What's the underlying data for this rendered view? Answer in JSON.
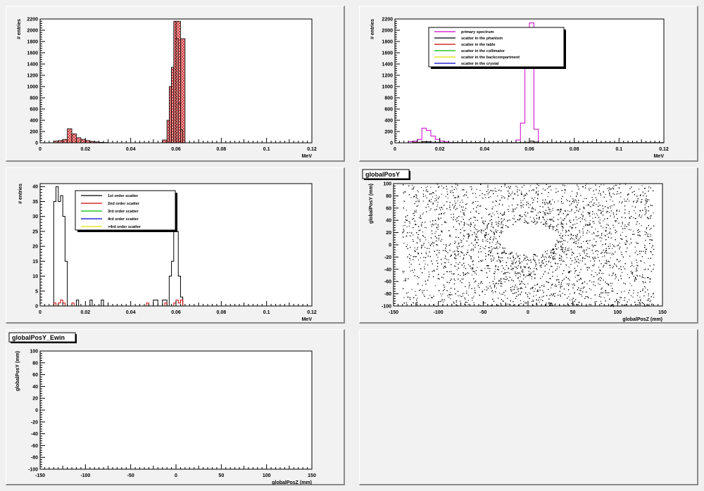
{
  "chart_data": [
    {
      "id": "energy_spectrum_filled",
      "type": "bar",
      "xlabel": "MeV",
      "ylabel": "# entries",
      "xlim": [
        0,
        0.12
      ],
      "ylim": [
        0,
        2200
      ],
      "x_ticks": [
        0,
        0.02,
        0.04,
        0.06,
        0.08,
        0.1,
        0.12
      ],
      "x_tick_labels": [
        "0",
        "0.02",
        "0.04",
        "0.06",
        "0.08",
        "0.1",
        "0.12"
      ],
      "y_ticks": [
        0,
        200,
        400,
        600,
        800,
        1000,
        1200,
        1400,
        1600,
        1800,
        2000,
        2200
      ],
      "bin_width": 0.002,
      "fill_color": "#cc2222",
      "series": [
        {
          "x": [
            0.006,
            0.008,
            0.01,
            0.012,
            0.014,
            0.016,
            0.018,
            0.02,
            0.022,
            0.024,
            0.026,
            0.028,
            0.054,
            0.056,
            0.058,
            0.06,
            0.062
          ],
          "values": [
            30,
            40,
            60,
            250,
            160,
            90,
            60,
            40,
            25,
            15,
            8,
            5,
            50,
            400,
            1340,
            2160,
            1850
          ]
        },
        {
          "x": [
            0.057,
            0.058,
            0.059,
            0.06,
            0.061,
            0.062
          ],
          "values": [
            1000,
            1340,
            2160,
            1850,
            700,
            230
          ]
        }
      ]
    },
    {
      "id": "energy_spectrum_components",
      "type": "line",
      "xlabel": "MeV",
      "ylabel": "# entries",
      "xlim": [
        0,
        0.12
      ],
      "ylim": [
        0,
        2200
      ],
      "x_ticks": [
        0,
        0.02,
        0.04,
        0.06,
        0.08,
        0.1,
        0.12
      ],
      "x_tick_labels": [
        "0",
        "0.02",
        "0.04",
        "0.06",
        "0.08",
        "0.1",
        "0.12"
      ],
      "y_ticks": [
        0,
        200,
        400,
        600,
        800,
        1000,
        1200,
        1400,
        1600,
        1800,
        2000,
        2200
      ],
      "legend_placement": "top-center",
      "series": [
        {
          "name": "primary spectrum",
          "color": "#cc00cc",
          "x": [
            0.004,
            0.006,
            0.008,
            0.01,
            0.012,
            0.014,
            0.016,
            0.018,
            0.02,
            0.022,
            0.024,
            0.026,
            0.028,
            0.03,
            0.054,
            0.056,
            0.058,
            0.06,
            0.062,
            0.064
          ],
          "values": [
            0,
            20,
            30,
            60,
            260,
            220,
            120,
            60,
            30,
            15,
            8,
            4,
            2,
            0,
            50,
            350,
            1370,
            2130,
            240,
            0
          ]
        },
        {
          "name": "scatter in the phantom",
          "color": "#000000",
          "x": [
            0.004,
            0.008,
            0.012,
            0.016,
            0.02,
            0.04,
            0.056,
            0.058,
            0.06,
            0.062,
            0.064,
            0.12
          ],
          "values": [
            0,
            10,
            20,
            10,
            5,
            2,
            5,
            10,
            30,
            12,
            2,
            0
          ]
        },
        {
          "name": "scatter in the table",
          "color": "#cc0000",
          "x": [
            0.004,
            0.008,
            0.012,
            0.02,
            0.058,
            0.06,
            0.062,
            0.12
          ],
          "values": [
            0,
            3,
            5,
            2,
            2,
            4,
            2,
            0
          ]
        },
        {
          "name": "scatter in the collimator",
          "color": "#00bb00",
          "x": [
            0.004,
            0.01,
            0.014,
            0.02,
            0.06,
            0.12
          ],
          "values": [
            0,
            2,
            3,
            1,
            2,
            0
          ]
        },
        {
          "name": "scatter in the backcompartment",
          "color": "#dddd00",
          "x": [
            0.004,
            0.01,
            0.014,
            0.02,
            0.06,
            0.12
          ],
          "values": [
            0,
            2,
            2,
            1,
            1,
            0
          ]
        },
        {
          "name": "scatter in the crystal",
          "color": "#0000cc",
          "x": [
            0.004,
            0.01,
            0.014,
            0.02,
            0.06,
            0.12
          ],
          "values": [
            0,
            2,
            3,
            1,
            2,
            0
          ]
        }
      ]
    },
    {
      "id": "scatter_order",
      "type": "line",
      "xlabel": "MeV",
      "ylabel": "# entries",
      "xlim": [
        0,
        0.12
      ],
      "ylim": [
        0,
        41
      ],
      "x_ticks": [
        0,
        0.02,
        0.04,
        0.06,
        0.08,
        0.1,
        0.12
      ],
      "x_tick_labels": [
        "0",
        "0.02",
        "0.04",
        "0.06",
        "0.08",
        "0.1",
        "0.12"
      ],
      "y_ticks": [
        0,
        5,
        10,
        15,
        20,
        25,
        30,
        35,
        40
      ],
      "legend_placement": "top-center",
      "series": [
        {
          "name": "1st order scatter",
          "color": "#000000",
          "x": [
            0.005,
            0.006,
            0.007,
            0.008,
            0.009,
            0.01,
            0.011,
            0.012,
            0.013,
            0.016,
            0.017,
            0.022,
            0.023,
            0.027,
            0.028,
            0.048,
            0.05,
            0.052,
            0.054,
            0.056,
            0.057,
            0.058,
            0.059,
            0.06,
            0.061,
            0.062,
            0.063
          ],
          "values": [
            0,
            35,
            40,
            35,
            37,
            30,
            15,
            0,
            0,
            2,
            0,
            2,
            0,
            2,
            0,
            0,
            2,
            0,
            2,
            0,
            10,
            15,
            30,
            25,
            10,
            3,
            0
          ]
        },
        {
          "name": "2nd order scatter",
          "color": "#cc0000",
          "x": [
            0.005,
            0.006,
            0.007,
            0.008,
            0.009,
            0.01,
            0.011,
            0.014,
            0.015,
            0.047,
            0.048,
            0.055,
            0.056,
            0.059,
            0.06,
            0.061,
            0.062,
            0.063
          ],
          "values": [
            0,
            1,
            0,
            1,
            2,
            1,
            0,
            1,
            0,
            1,
            0,
            1,
            0,
            1,
            2,
            1,
            2,
            0
          ]
        },
        {
          "name": "3rd order scatter",
          "color": "#00bb00",
          "x": [
            0.005,
            0.009,
            0.01,
            0.12
          ],
          "values": [
            0,
            0,
            0,
            0
          ]
        },
        {
          "name": "4rd order scatter",
          "color": "#0000cc",
          "x": [
            0.005,
            0.01,
            0.12
          ],
          "values": [
            0,
            0,
            0
          ]
        },
        {
          "name": ">4rd order scatter",
          "color": "#dddd00",
          "x": [
            0.0,
            0.12
          ],
          "values": [
            0,
            0
          ]
        }
      ]
    },
    {
      "id": "globalPosY",
      "type": "scatter",
      "title": "globalPosY",
      "xlabel": "globalPosZ (mm)",
      "ylabel": "globalPosY (mm)",
      "xlim": [
        -150,
        150
      ],
      "ylim": [
        -100,
        100
      ],
      "x_ticks": [
        -150,
        -100,
        -50,
        0,
        50,
        100,
        150
      ],
      "y_ticks": [
        -100,
        -80,
        -60,
        -40,
        -20,
        0,
        20,
        40,
        60,
        80,
        100
      ],
      "extent_z": [
        -140,
        140
      ],
      "hole": {
        "cz": 0,
        "cy": 10,
        "rz": 32,
        "ry": 25
      },
      "point_count": 7000
    },
    {
      "id": "globalPosY_Ewin",
      "type": "scatter",
      "title": "globalPosY_Ewin",
      "xlabel": "globalPosZ (mm)",
      "ylabel": "globalPosY (mm)",
      "xlim": [
        -150,
        150
      ],
      "ylim": [
        -100,
        100
      ],
      "x_ticks": [
        -150,
        -100,
        -50,
        0,
        50,
        100,
        150
      ],
      "y_ticks": [
        -100,
        -80,
        -60,
        -40,
        -20,
        0,
        20,
        40,
        60,
        80,
        100
      ],
      "point_count": 0
    }
  ]
}
